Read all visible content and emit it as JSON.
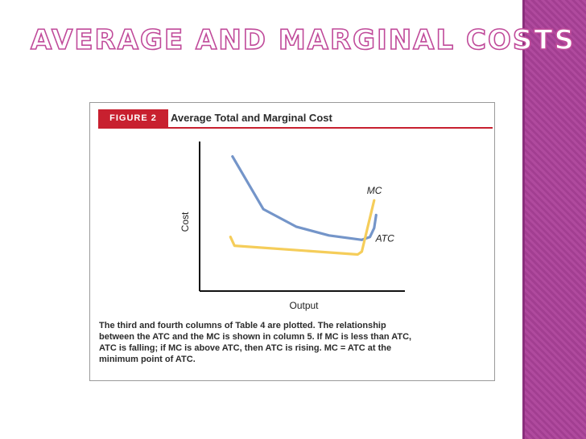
{
  "slide": {
    "title": "Average and Marginal Costs"
  },
  "figure": {
    "badge": "FIGURE 2",
    "title": "Average Total and Marginal Cost",
    "note": "The third and fourth columns of Table 4 are plotted. The relationship between the ATC and the MC is shown in column 5. If MC is less than ATC, ATC is falling; if MC is above ATC, then ATC is rising. MC = ATC at the minimum point of ATC."
  },
  "colors": {
    "accent_red": "#c8202f",
    "title_outline": "#c04a9a",
    "sidebar_purple": "#b04a9e",
    "atc_blue": "#7495c9",
    "mc_yellow": "#f5cd5a"
  },
  "chart_data": {
    "type": "line",
    "title": "Average Total and Marginal Cost",
    "xlabel": "Output",
    "ylabel": "Cost",
    "xlim": [
      0,
      10
    ],
    "ylim": [
      0,
      10
    ],
    "grid": false,
    "axis_ticks": "none",
    "series": [
      {
        "name": "ATC",
        "color": "#7495c9",
        "x": [
          1.6,
          3.1,
          4.7,
          6.3,
          7.9,
          8.3,
          8.5,
          8.6
        ],
        "y": [
          9.2,
          5.6,
          4.4,
          3.8,
          3.5,
          3.7,
          4.3,
          5.2
        ]
      },
      {
        "name": "MC",
        "color": "#f5cd5a",
        "x": [
          1.5,
          1.7,
          7.7,
          7.9,
          8.5
        ],
        "y": [
          3.7,
          3.1,
          2.5,
          2.7,
          6.2
        ]
      }
    ]
  }
}
